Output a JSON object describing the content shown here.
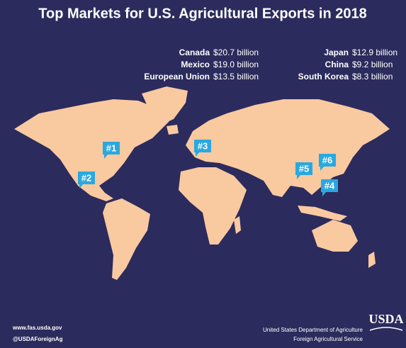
{
  "title": "Top Markets for U.S. Agricultural Exports in 2018",
  "markets": [
    {
      "name": "Canada",
      "value": "$20.7 billion"
    },
    {
      "name": "Mexico",
      "value": "$19.0 billion"
    },
    {
      "name": "European Union",
      "value": "$13.5 billion"
    },
    {
      "name": "Japan",
      "value": "$12.9 billion"
    },
    {
      "name": "China",
      "value": "$9.2 billion"
    },
    {
      "name": "South Korea",
      "value": "$8.3 billion"
    }
  ],
  "pins": [
    "#1",
    "#2",
    "#3",
    "#4",
    "#5",
    "#6"
  ],
  "footer": {
    "website": "www.fas.usda.gov",
    "handle": "@USDAForeignAg",
    "logo": "USDA",
    "agency": "United States Department of Agriculture",
    "service": "Foreign Agricultural Service"
  }
}
